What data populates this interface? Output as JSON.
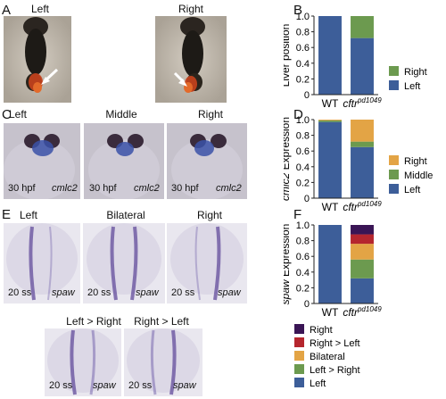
{
  "panels": {
    "A": {
      "letter": "A",
      "captions": [
        "Left",
        "Right"
      ]
    },
    "B": {
      "letter": "B"
    },
    "C": {
      "letter": "C",
      "captions": [
        "Left",
        "Middle",
        "Right"
      ],
      "stage": "30 hpf",
      "gene": "cmlc2"
    },
    "D": {
      "letter": "D"
    },
    "E": {
      "letter": "E",
      "captions": [
        "Left",
        "Bilateral",
        "Right",
        "Left > Right",
        "Right > Left"
      ],
      "stage": "20 ss",
      "gene": "spaw"
    },
    "F": {
      "letter": "F"
    }
  },
  "colors": {
    "left": "#3d5e99",
    "middle": "#6c9a4f",
    "right_cmlc2": "#e3a445",
    "right_liver": "#6c9a4f",
    "spaw_right": "#3a1555",
    "spaw_right_gt_left": "#b5262e",
    "spaw_bilateral": "#e3a445",
    "spaw_left_gt_right": "#6c9a4f",
    "spaw_left": "#3d5e99"
  },
  "chart_data": [
    {
      "type": "bar",
      "stacked": true,
      "ylabel": "Liver position",
      "categories": [
        "WT",
        "cftr"
      ],
      "cat_sup": [
        "",
        "pd1049"
      ],
      "ylim": [
        0,
        1.0
      ],
      "yticks": [
        "0",
        "0.2",
        "0.4",
        "0.6",
        "0.8",
        "1.0"
      ],
      "series": [
        {
          "name": "Left",
          "values": [
            1.0,
            0.72
          ],
          "color": "#3d5e99"
        },
        {
          "name": "Right",
          "values": [
            0.0,
            0.28
          ],
          "color": "#6c9a4f"
        }
      ],
      "legend_order": [
        "Right",
        "Left"
      ]
    },
    {
      "type": "bar",
      "stacked": true,
      "ylabel_italic": "cmlc2",
      "ylabel": " Expression",
      "categories": [
        "WT",
        "cftr"
      ],
      "cat_sup": [
        "",
        "pd1049"
      ],
      "ylim": [
        0,
        1.0
      ],
      "yticks": [
        "0",
        "0.2",
        "0.4",
        "0.6",
        "0.8",
        "1.0"
      ],
      "series": [
        {
          "name": "Left",
          "values": [
            0.97,
            0.65
          ],
          "color": "#3d5e99"
        },
        {
          "name": "Middle",
          "values": [
            0.02,
            0.07
          ],
          "color": "#6c9a4f"
        },
        {
          "name": "Right",
          "values": [
            0.01,
            0.28
          ],
          "color": "#e3a445"
        }
      ],
      "legend_order": [
        "Right",
        "Middle",
        "Left"
      ]
    },
    {
      "type": "bar",
      "stacked": true,
      "ylabel_italic": "spaw",
      "ylabel": " Expression",
      "categories": [
        "WT",
        "cftr"
      ],
      "cat_sup": [
        "",
        "pd1049"
      ],
      "ylim": [
        0,
        1.0
      ],
      "yticks": [
        "0",
        "0.2",
        "0.4",
        "0.6",
        "0.8",
        "1.0"
      ],
      "series": [
        {
          "name": "Left",
          "values": [
            1.0,
            0.32
          ],
          "color": "#3d5e99"
        },
        {
          "name": "Left > Right",
          "values": [
            0.0,
            0.24
          ],
          "color": "#6c9a4f"
        },
        {
          "name": "Bilateral",
          "values": [
            0.0,
            0.2
          ],
          "color": "#e3a445"
        },
        {
          "name": "Right > Left",
          "values": [
            0.0,
            0.12
          ],
          "color": "#b5262e"
        },
        {
          "name": "Right",
          "values": [
            0.0,
            0.12
          ],
          "color": "#3a1555"
        }
      ],
      "legend_order": [
        "Right",
        "Right > Left",
        "Bilateral",
        "Left > Right",
        "Left"
      ]
    }
  ]
}
